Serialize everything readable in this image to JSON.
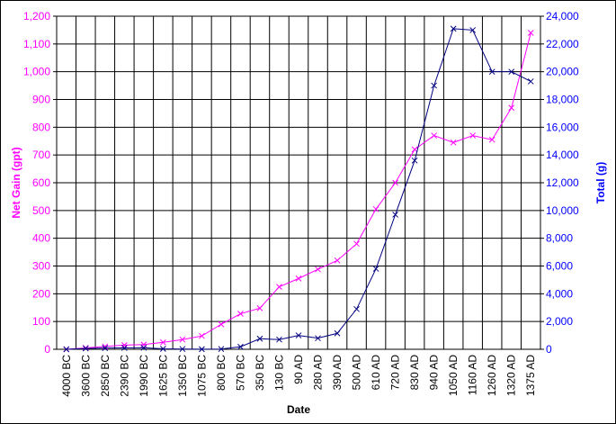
{
  "colors": {
    "left_series": "#ff00ff",
    "right_series": "#000080",
    "left_axis_text": "#ff00ff",
    "right_axis_text": "#0000ff",
    "grid": "#000000",
    "background": "#ffffff"
  },
  "chart_data": {
    "type": "line",
    "xlabel": "Date",
    "ylabel_left": "Net Gain (gpt)",
    "ylabel_right": "Total (g)",
    "grid": true,
    "legend": "none",
    "marker": "x",
    "categories": [
      "4000 BC",
      "3600 BC",
      "2850 BC",
      "2390 BC",
      "1990 BC",
      "1625 BC",
      "1350 BC",
      "1075 BC",
      "800 BC",
      "570 BC",
      "350 BC",
      "130 BC",
      "90 AD",
      "280 AD",
      "390 AD",
      "500 AD",
      "610 AD",
      "720 AD",
      "830 AD",
      "940 AD",
      "1050 AD",
      "1160 AD",
      "1260 AD",
      "1320 AD",
      "1375 AD"
    ],
    "ylim_left": [
      0,
      1200
    ],
    "ylim_right": [
      0,
      24000
    ],
    "yticks_left": [
      0,
      100,
      200,
      300,
      400,
      500,
      600,
      700,
      800,
      900,
      1000,
      1100,
      1200
    ],
    "yticks_left_labels": [
      "0",
      "100",
      "200",
      "300",
      "400",
      "500",
      "600",
      "700",
      "800",
      "900",
      "1,000",
      "1,100",
      "1,200"
    ],
    "yticks_right": [
      0,
      2000,
      4000,
      6000,
      8000,
      10000,
      12000,
      14000,
      16000,
      18000,
      20000,
      22000,
      24000
    ],
    "yticks_right_labels": [
      "0",
      "2,000",
      "4,000",
      "6,000",
      "8,000",
      "10,000",
      "12,000",
      "14,000",
      "16,000",
      "18,000",
      "20,000",
      "22,000",
      "24,000"
    ],
    "series": [
      {
        "axis": "left",
        "values": [
          0,
          5,
          10,
          15,
          17,
          25,
          35,
          48,
          90,
          128,
          148,
          225,
          255,
          288,
          320,
          380,
          505,
          600,
          720,
          770,
          745,
          770,
          755,
          870,
          1140
        ]
      },
      {
        "axis": "right",
        "values": [
          0,
          60,
          90,
          100,
          110,
          30,
          20,
          10,
          20,
          180,
          760,
          700,
          1000,
          800,
          1150,
          2900,
          5800,
          9700,
          13600,
          19000,
          23100,
          23000,
          20000,
          20000,
          19300
        ]
      }
    ]
  }
}
